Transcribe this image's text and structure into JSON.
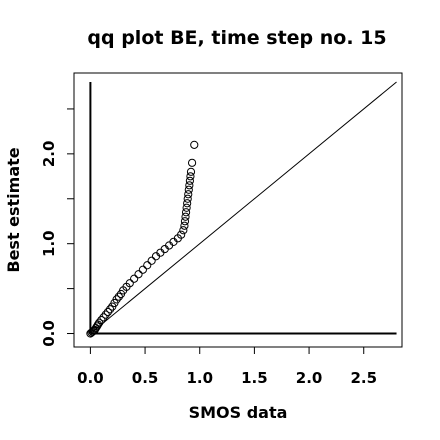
{
  "chart_data": {
    "type": "scatter",
    "title": "qq plot BE, time step no. 15",
    "xlabel": "SMOS data",
    "ylabel": "Best estimate",
    "xlim": [
      -0.15,
      2.85
    ],
    "ylim": [
      -0.15,
      2.9
    ],
    "x_ticks": [
      0.0,
      0.5,
      1.0,
      1.5,
      2.0,
      2.5
    ],
    "x_tick_labels": [
      "0.0",
      "0.5",
      "1.0",
      "1.5",
      "2.0",
      "2.5"
    ],
    "y_ticks": [
      0.0,
      0.5,
      1.0,
      1.5,
      2.0,
      2.5
    ],
    "y_tick_labels": [
      "0.0",
      "",
      "1.0",
      "",
      "2.0",
      ""
    ],
    "marker": "open-circle",
    "grid": false,
    "reference_lines": [
      {
        "name": "y = x",
        "x": [
          0.0,
          2.8
        ],
        "y": [
          0.0,
          2.8
        ]
      },
      {
        "name": "x = 0",
        "x": [
          0.0,
          0.0
        ],
        "y": [
          0.0,
          2.8
        ]
      },
      {
        "name": "y = 0",
        "x": [
          0.0,
          2.8
        ],
        "y": [
          0.0,
          0.0
        ]
      }
    ],
    "points": {
      "x": [
        0.0,
        0.01,
        0.02,
        0.03,
        0.04,
        0.05,
        0.06,
        0.07,
        0.08,
        0.1,
        0.12,
        0.14,
        0.16,
        0.18,
        0.2,
        0.22,
        0.24,
        0.26,
        0.28,
        0.3,
        0.33,
        0.36,
        0.4,
        0.44,
        0.48,
        0.52,
        0.56,
        0.6,
        0.64,
        0.68,
        0.72,
        0.76,
        0.8,
        0.83,
        0.85,
        0.86,
        0.865,
        0.87,
        0.875,
        0.88,
        0.885,
        0.89,
        0.895,
        0.9,
        0.905,
        0.91,
        0.915,
        0.92,
        0.93,
        0.95
      ],
      "y": [
        0.0,
        0.01,
        0.02,
        0.03,
        0.04,
        0.06,
        0.08,
        0.1,
        0.12,
        0.15,
        0.18,
        0.21,
        0.24,
        0.27,
        0.3,
        0.34,
        0.38,
        0.41,
        0.44,
        0.48,
        0.52,
        0.56,
        0.61,
        0.66,
        0.71,
        0.76,
        0.81,
        0.86,
        0.9,
        0.94,
        0.98,
        1.02,
        1.06,
        1.1,
        1.15,
        1.2,
        1.25,
        1.3,
        1.35,
        1.4,
        1.45,
        1.5,
        1.55,
        1.6,
        1.65,
        1.7,
        1.75,
        1.8,
        1.9,
        2.1
      ]
    }
  }
}
